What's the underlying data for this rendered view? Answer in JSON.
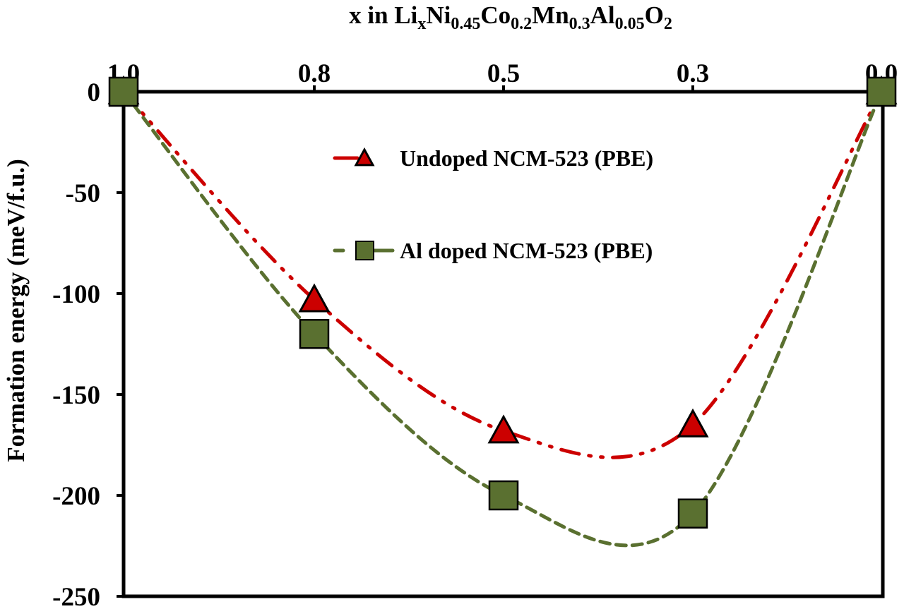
{
  "chart_data": {
    "type": "line",
    "title_parts": [
      {
        "text": "x in Li",
        "sub": false
      },
      {
        "text": "x",
        "sub": true
      },
      {
        "text": "Ni",
        "sub": false
      },
      {
        "text": "0.45",
        "sub": true
      },
      {
        "text": "Co",
        "sub": false
      },
      {
        "text": "0.2",
        "sub": true
      },
      {
        "text": "Mn",
        "sub": false
      },
      {
        "text": "0.3",
        "sub": true
      },
      {
        "text": "Al",
        "sub": false
      },
      {
        "text": "0.05",
        "sub": true
      },
      {
        "text": "O",
        "sub": false
      },
      {
        "text": "2",
        "sub": true
      }
    ],
    "xlabel": "x in LixNi0.45Co0.2Mn0.3Al0.05O2",
    "ylabel": "Formation energy (meV/f.u.)",
    "categories": [
      "1.0",
      "0.8",
      "0.5",
      "0.3",
      "0.0"
    ],
    "x_axis_position": "top",
    "ylim": [
      -250,
      0
    ],
    "yticks": [
      "0",
      "-50",
      "-100",
      "-150",
      "-200",
      "-250"
    ],
    "ytick_values": [
      0,
      -50,
      -100,
      -150,
      -200,
      -250
    ],
    "grid": false,
    "legend_placement": "top-center",
    "series": [
      {
        "name": "Undoped NCM-523 (PBE)",
        "values": [
          0,
          -103,
          -168,
          -165,
          0
        ],
        "color": "#cc0000",
        "marker": "triangle",
        "line_style": "dash-dot-dot",
        "smooth": true
      },
      {
        "name": "Al doped NCM-523 (PBE)",
        "values": [
          0,
          -120,
          -200,
          -209,
          0
        ],
        "color": "#5a7030",
        "marker": "square",
        "line_style": "dashed",
        "smooth": true
      }
    ]
  }
}
